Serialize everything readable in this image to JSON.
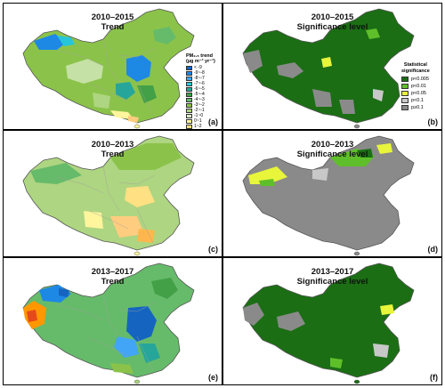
{
  "panels": [
    {
      "id": "a",
      "title_line1": "2010–2015",
      "title_line2": "Trend",
      "label": "(a)",
      "kind": "trend"
    },
    {
      "id": "b",
      "title_line1": "2010–2015",
      "title_line2": "Significance level",
      "label": "(b)",
      "kind": "sig"
    },
    {
      "id": "c",
      "title_line1": "2010–2013",
      "title_line2": "Trend",
      "label": "(c)",
      "kind": "trend"
    },
    {
      "id": "d",
      "title_line1": "2010–2013",
      "title_line2": "Significance level",
      "label": "(d)",
      "kind": "sig"
    },
    {
      "id": "e",
      "title_line1": "2013–2017",
      "title_line2": "Trend",
      "label": "(e)",
      "kind": "trend"
    },
    {
      "id": "f",
      "title_line1": "2013–2017",
      "title_line2": "Significance level",
      "label": "(f)",
      "kind": "sig"
    }
  ],
  "trend_legend": {
    "title_line1": "PM₂.₅ trend",
    "title_line2": "(µg m⁻³ yr⁻¹)",
    "items": [
      {
        "label": "< -9",
        "color": "#1565c0"
      },
      {
        "label": "-9~-8",
        "color": "#1e88e5"
      },
      {
        "label": "-8~-7",
        "color": "#42a5f5"
      },
      {
        "label": "-7~-6",
        "color": "#26c6da"
      },
      {
        "label": "-6~-5",
        "color": "#26a69a"
      },
      {
        "label": "-5~-4",
        "color": "#43a047"
      },
      {
        "label": "-4~-3",
        "color": "#66bb6a"
      },
      {
        "label": "-3~-2",
        "color": "#8bc34a"
      },
      {
        "label": "-2~-1",
        "color": "#aed581"
      },
      {
        "label": "-1~0",
        "color": "#dcedc8"
      },
      {
        "label": "0~1",
        "color": "#fff59d"
      },
      {
        "label": "1~2",
        "color": "#ffe082"
      },
      {
        "label": "2~3",
        "color": "#ffcc80"
      },
      {
        "label": "3~4",
        "color": "#ffb74d"
      },
      {
        "label": "4~5",
        "color": "#ff9800"
      },
      {
        "label": "5~6",
        "color": "#fb8c00"
      },
      {
        "label": "6~7",
        "color": "#f4511e"
      },
      {
        "label": "7~8",
        "color": "#e64a19"
      },
      {
        "label": "> 8",
        "color": "#d84315"
      }
    ]
  },
  "sig_legend": {
    "title_line1": "Statistical",
    "title_line2": "significance",
    "items": [
      {
        "label": "p<0.005",
        "color": "#1b6e14"
      },
      {
        "label": "p<0.01",
        "color": "#5fbf2a"
      },
      {
        "label": "p<0.05",
        "color": "#e8f53a"
      },
      {
        "label": "p<0.1",
        "color": "#c8c8c8"
      },
      {
        "label": "p≥0.1",
        "color": "#8a8a8a"
      }
    ]
  },
  "colors": {
    "border_outline": "#555555",
    "province_line": "#9e9e9e"
  }
}
